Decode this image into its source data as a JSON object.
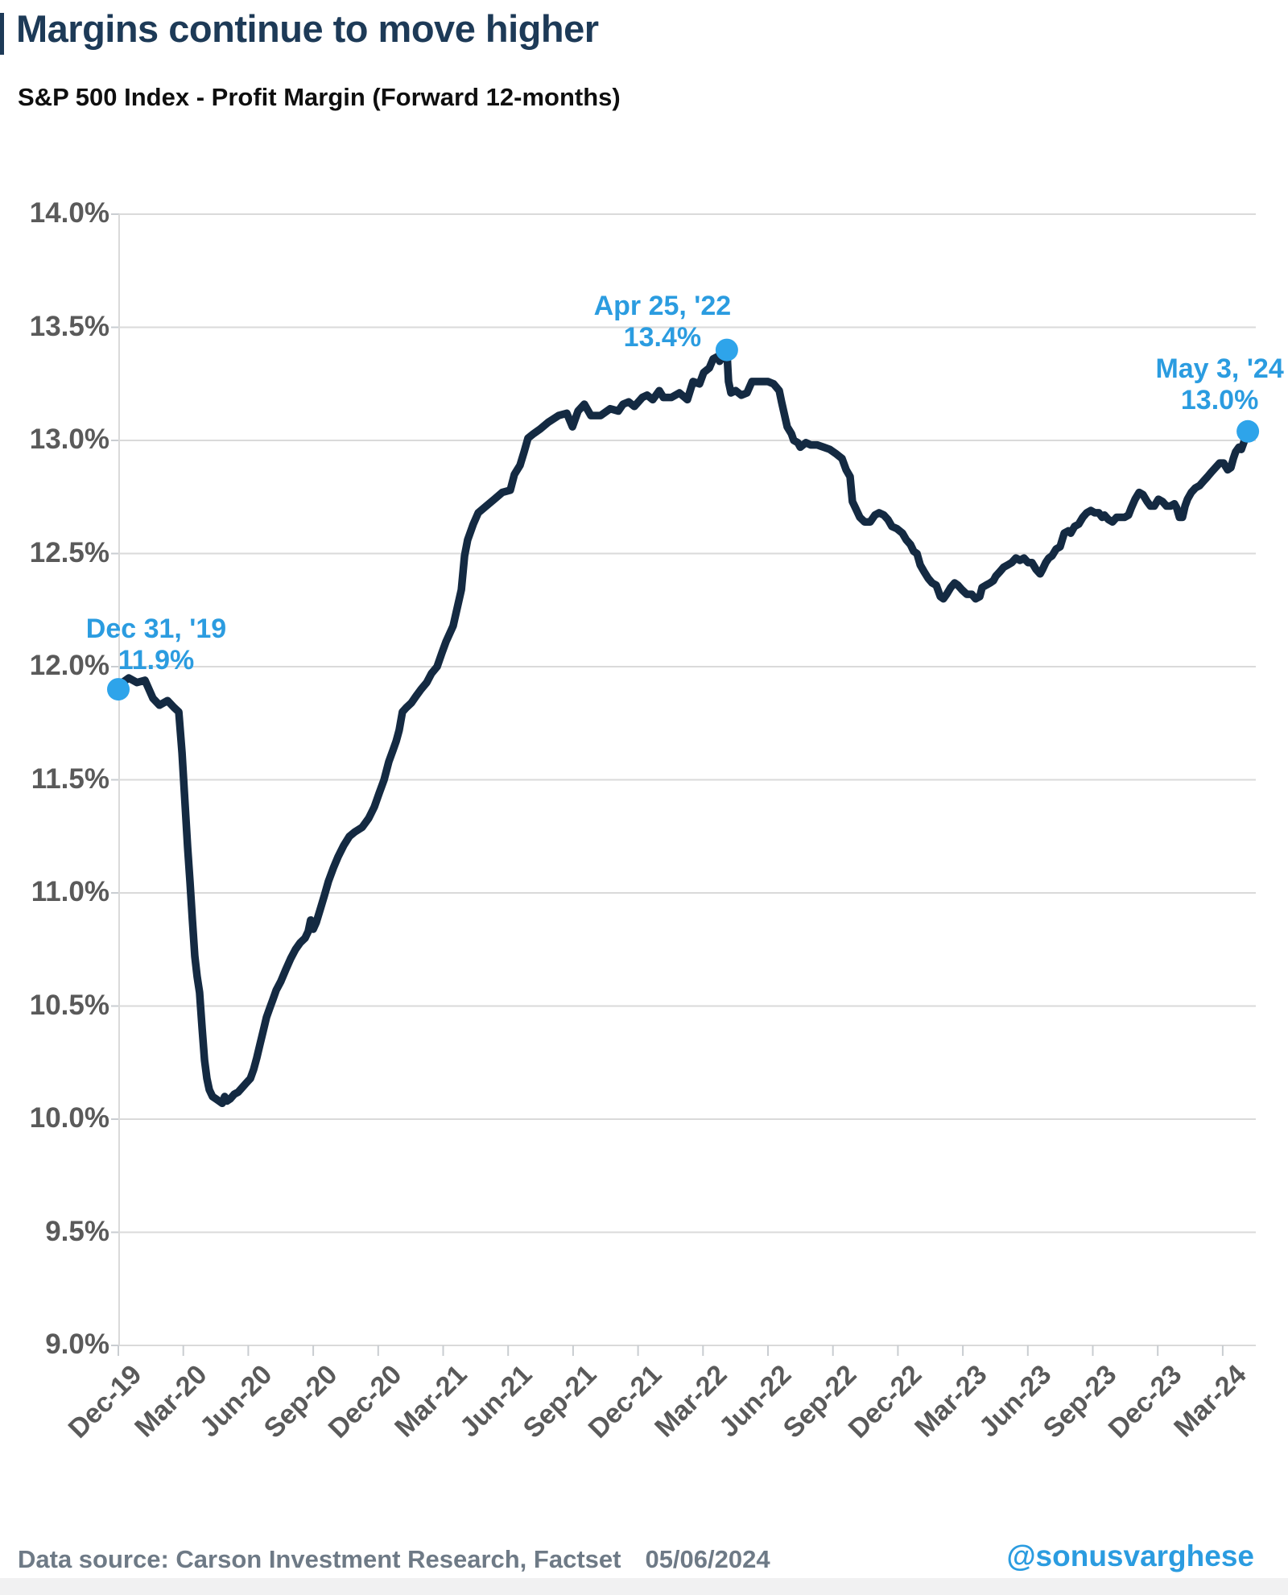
{
  "title": "Margins continue to move higher",
  "subtitle": "S&P 500 Index - Profit Margin (Forward 12-months)",
  "footer": {
    "source": "Data source: Carson Investment Research, Factset",
    "date": "05/06/2024",
    "handle": "@sonusvarghese"
  },
  "colors": {
    "title_navy": "#1d3a57",
    "line_navy": "#142a42",
    "accent_blue": "#2b9ce0",
    "dot_blue": "#2ea4ea",
    "axis_gray": "#5a5a5a",
    "grid_gray": "#dadada",
    "tick_gray": "#c9cdd1",
    "footer_gray": "#6e7a86"
  },
  "chart_data": {
    "type": "line",
    "title": "Margins continue to move higher",
    "subtitle": "S&P 500 Index - Profit Margin (Forward 12-months)",
    "xlabel": "",
    "ylabel": "",
    "x_unit": "months since Dec-2019",
    "xlim": [
      0,
      52.6
    ],
    "ylim": [
      9.0,
      14.0
    ],
    "grid": "horizontal",
    "legend": "none",
    "y_ticks": [
      {
        "v": 14.0,
        "label": "14.0%"
      },
      {
        "v": 13.5,
        "label": "13.5%"
      },
      {
        "v": 13.0,
        "label": "13.0%"
      },
      {
        "v": 12.5,
        "label": "12.5%"
      },
      {
        "v": 12.0,
        "label": "12.0%"
      },
      {
        "v": 11.5,
        "label": "11.5%"
      },
      {
        "v": 11.0,
        "label": "11.0%"
      },
      {
        "v": 10.5,
        "label": "10.5%"
      },
      {
        "v": 10.0,
        "label": "10.0%"
      },
      {
        "v": 9.5,
        "label": "9.5%"
      },
      {
        "v": 9.0,
        "label": "9.0%"
      }
    ],
    "x_ticks": [
      {
        "t": 0,
        "label": "Dec-19"
      },
      {
        "t": 3,
        "label": "Mar-20"
      },
      {
        "t": 6,
        "label": "Jun-20"
      },
      {
        "t": 9,
        "label": "Sep-20"
      },
      {
        "t": 12,
        "label": "Dec-20"
      },
      {
        "t": 15,
        "label": "Mar-21"
      },
      {
        "t": 18,
        "label": "Jun-21"
      },
      {
        "t": 21,
        "label": "Sep-21"
      },
      {
        "t": 24,
        "label": "Dec-21"
      },
      {
        "t": 27,
        "label": "Mar-22"
      },
      {
        "t": 30,
        "label": "Jun-22"
      },
      {
        "t": 33,
        "label": "Sep-22"
      },
      {
        "t": 36,
        "label": "Dec-22"
      },
      {
        "t": 39,
        "label": "Mar-23"
      },
      {
        "t": 42,
        "label": "Jun-23"
      },
      {
        "t": 45,
        "label": "Sep-23"
      },
      {
        "t": 48,
        "label": "Dec-23"
      },
      {
        "t": 51,
        "label": "Mar-24"
      }
    ],
    "annotations": [
      {
        "lines": [
          "Dec 31, '19",
          "11.9%"
        ],
        "t": 0,
        "v": 11.9
      },
      {
        "lines": [
          "Apr 25, '22",
          "13.4%"
        ],
        "t": 28.1,
        "v": 13.4
      },
      {
        "lines": [
          "May 3, '24",
          "13.0%"
        ],
        "t": 52.16,
        "v": 13.04
      }
    ],
    "series": [
      {
        "name": "S&P 500 Index - Profit Margin (Forward 12-months)",
        "points": [
          [
            0,
            11.9
          ],
          [
            0.19,
            11.93
          ],
          [
            0.48,
            11.95
          ],
          [
            0.86,
            11.93
          ],
          [
            1.23,
            11.94
          ],
          [
            1.6,
            11.86
          ],
          [
            1.9,
            11.83
          ],
          [
            2.27,
            11.85
          ],
          [
            2.57,
            11.82
          ],
          [
            2.79,
            11.8
          ],
          [
            2.94,
            11.62
          ],
          [
            3.09,
            11.38
          ],
          [
            3.2,
            11.2
          ],
          [
            3.31,
            11.05
          ],
          [
            3.42,
            10.88
          ],
          [
            3.53,
            10.72
          ],
          [
            3.64,
            10.63
          ],
          [
            3.75,
            10.56
          ],
          [
            3.87,
            10.4
          ],
          [
            3.98,
            10.26
          ],
          [
            4.09,
            10.18
          ],
          [
            4.2,
            10.13
          ],
          [
            4.35,
            10.1
          ],
          [
            4.5,
            10.09
          ],
          [
            4.65,
            10.08
          ],
          [
            4.8,
            10.07
          ],
          [
            4.91,
            10.1
          ],
          [
            5.02,
            10.08
          ],
          [
            5.17,
            10.09
          ],
          [
            5.35,
            10.11
          ],
          [
            5.54,
            10.12
          ],
          [
            5.72,
            10.14
          ],
          [
            5.91,
            10.16
          ],
          [
            6.1,
            10.18
          ],
          [
            6.25,
            10.22
          ],
          [
            6.39,
            10.27
          ],
          [
            6.54,
            10.33
          ],
          [
            6.69,
            10.39
          ],
          [
            6.84,
            10.45
          ],
          [
            6.99,
            10.49
          ],
          [
            7.14,
            10.53
          ],
          [
            7.29,
            10.57
          ],
          [
            7.51,
            10.61
          ],
          [
            7.73,
            10.66
          ],
          [
            7.96,
            10.71
          ],
          [
            8.18,
            10.75
          ],
          [
            8.4,
            10.78
          ],
          [
            8.62,
            10.8
          ],
          [
            8.77,
            10.83
          ],
          [
            8.88,
            10.88
          ],
          [
            9,
            10.84
          ],
          [
            9.14,
            10.87
          ],
          [
            9.33,
            10.93
          ],
          [
            9.52,
            10.99
          ],
          [
            9.7,
            11.05
          ],
          [
            9.93,
            11.11
          ],
          [
            10.15,
            11.16
          ],
          [
            10.41,
            11.21
          ],
          [
            10.67,
            11.25
          ],
          [
            10.93,
            11.27
          ],
          [
            11.26,
            11.29
          ],
          [
            11.56,
            11.33
          ],
          [
            11.82,
            11.38
          ],
          [
            12.04,
            11.44
          ],
          [
            12.27,
            11.5
          ],
          [
            12.49,
            11.58
          ],
          [
            12.68,
            11.63
          ],
          [
            12.83,
            11.67
          ],
          [
            12.97,
            11.72
          ],
          [
            13.12,
            11.8
          ],
          [
            13.31,
            11.82
          ],
          [
            13.53,
            11.84
          ],
          [
            13.75,
            11.87
          ],
          [
            13.98,
            11.9
          ],
          [
            14.24,
            11.93
          ],
          [
            14.46,
            11.97
          ],
          [
            14.72,
            12
          ],
          [
            14.94,
            12.06
          ],
          [
            15.13,
            12.11
          ],
          [
            15.32,
            12.15
          ],
          [
            15.46,
            12.18
          ],
          [
            15.65,
            12.26
          ],
          [
            15.84,
            12.34
          ],
          [
            15.99,
            12.49
          ],
          [
            16.13,
            12.56
          ],
          [
            16.39,
            12.63
          ],
          [
            16.62,
            12.68
          ],
          [
            16.99,
            12.71
          ],
          [
            17.36,
            12.74
          ],
          [
            17.73,
            12.77
          ],
          [
            18.1,
            12.78
          ],
          [
            18.29,
            12.85
          ],
          [
            18.55,
            12.89
          ],
          [
            18.74,
            12.95
          ],
          [
            18.92,
            13.01
          ],
          [
            19.18,
            13.03
          ],
          [
            19.48,
            13.05
          ],
          [
            19.85,
            13.08
          ],
          [
            20.33,
            13.11
          ],
          [
            20.71,
            13.12
          ],
          [
            20.97,
            13.06
          ],
          [
            21.23,
            13.13
          ],
          [
            21.52,
            13.16
          ],
          [
            21.82,
            13.11
          ],
          [
            22.27,
            13.11
          ],
          [
            22.71,
            13.14
          ],
          [
            23.09,
            13.13
          ],
          [
            23.31,
            13.16
          ],
          [
            23.57,
            13.17
          ],
          [
            23.83,
            13.15
          ],
          [
            24.2,
            13.19
          ],
          [
            24.42,
            13.2
          ],
          [
            24.68,
            13.18
          ],
          [
            24.98,
            13.22
          ],
          [
            25.17,
            13.19
          ],
          [
            25.54,
            13.19
          ],
          [
            25.91,
            13.21
          ],
          [
            26.28,
            13.18
          ],
          [
            26.54,
            13.26
          ],
          [
            26.84,
            13.25
          ],
          [
            27.03,
            13.3
          ],
          [
            27.29,
            13.32
          ],
          [
            27.47,
            13.36
          ],
          [
            27.66,
            13.37
          ],
          [
            27.77,
            13.35
          ],
          [
            27.96,
            13.38
          ],
          [
            28.1,
            13.4
          ],
          [
            28.18,
            13.26
          ],
          [
            28.29,
            13.21
          ],
          [
            28.51,
            13.22
          ],
          [
            28.77,
            13.2
          ],
          [
            29.03,
            13.21
          ],
          [
            29.26,
            13.26
          ],
          [
            29.63,
            13.26
          ],
          [
            30,
            13.26
          ],
          [
            30.26,
            13.25
          ],
          [
            30.52,
            13.22
          ],
          [
            30.63,
            13.17
          ],
          [
            30.89,
            13.06
          ],
          [
            31.08,
            13.03
          ],
          [
            31.19,
            13
          ],
          [
            31.38,
            12.99
          ],
          [
            31.49,
            12.97
          ],
          [
            31.75,
            12.99
          ],
          [
            31.97,
            12.98
          ],
          [
            32.27,
            12.98
          ],
          [
            32.57,
            12.97
          ],
          [
            32.86,
            12.96
          ],
          [
            33.16,
            12.94
          ],
          [
            33.42,
            12.92
          ],
          [
            33.61,
            12.87
          ],
          [
            33.79,
            12.84
          ],
          [
            33.9,
            12.73
          ],
          [
            34.05,
            12.7
          ],
          [
            34.24,
            12.66
          ],
          [
            34.46,
            12.64
          ],
          [
            34.72,
            12.64
          ],
          [
            34.94,
            12.67
          ],
          [
            35.13,
            12.68
          ],
          [
            35.35,
            12.67
          ],
          [
            35.54,
            12.65
          ],
          [
            35.72,
            12.62
          ],
          [
            35.95,
            12.61
          ],
          [
            36.21,
            12.59
          ],
          [
            36.39,
            12.56
          ],
          [
            36.58,
            12.54
          ],
          [
            36.73,
            12.51
          ],
          [
            36.88,
            12.5
          ],
          [
            37.03,
            12.45
          ],
          [
            37.21,
            12.42
          ],
          [
            37.4,
            12.39
          ],
          [
            37.58,
            12.37
          ],
          [
            37.77,
            12.36
          ],
          [
            37.96,
            12.31
          ],
          [
            38.1,
            12.3
          ],
          [
            38.25,
            12.32
          ],
          [
            38.44,
            12.35
          ],
          [
            38.62,
            12.37
          ],
          [
            38.77,
            12.36
          ],
          [
            38.96,
            12.34
          ],
          [
            39.18,
            12.32
          ],
          [
            39.41,
            12.32
          ],
          [
            39.59,
            12.3
          ],
          [
            39.78,
            12.31
          ],
          [
            39.89,
            12.35
          ],
          [
            40.07,
            12.36
          ],
          [
            40.26,
            12.37
          ],
          [
            40.41,
            12.38
          ],
          [
            40.52,
            12.4
          ],
          [
            40.71,
            12.42
          ],
          [
            40.89,
            12.44
          ],
          [
            41.08,
            12.45
          ],
          [
            41.26,
            12.46
          ],
          [
            41.45,
            12.48
          ],
          [
            41.64,
            12.47
          ],
          [
            41.82,
            12.48
          ],
          [
            42.01,
            12.46
          ],
          [
            42.19,
            12.46
          ],
          [
            42.38,
            12.43
          ],
          [
            42.57,
            12.41
          ],
          [
            42.68,
            12.43
          ],
          [
            42.83,
            12.46
          ],
          [
            42.97,
            12.48
          ],
          [
            43.12,
            12.49
          ],
          [
            43.31,
            12.52
          ],
          [
            43.49,
            12.53
          ],
          [
            43.68,
            12.59
          ],
          [
            43.87,
            12.6
          ],
          [
            43.98,
            12.59
          ],
          [
            44.16,
            12.62
          ],
          [
            44.35,
            12.63
          ],
          [
            44.54,
            12.66
          ],
          [
            44.72,
            12.68
          ],
          [
            44.91,
            12.69
          ],
          [
            45.09,
            12.68
          ],
          [
            45.28,
            12.68
          ],
          [
            45.43,
            12.66
          ],
          [
            45.54,
            12.67
          ],
          [
            45.72,
            12.65
          ],
          [
            45.91,
            12.64
          ],
          [
            46.1,
            12.66
          ],
          [
            46.28,
            12.66
          ],
          [
            46.47,
            12.66
          ],
          [
            46.65,
            12.67
          ],
          [
            46.77,
            12.7
          ],
          [
            46.95,
            12.74
          ],
          [
            47.14,
            12.77
          ],
          [
            47.32,
            12.76
          ],
          [
            47.51,
            12.73
          ],
          [
            47.66,
            12.71
          ],
          [
            47.84,
            12.71
          ],
          [
            48.03,
            12.74
          ],
          [
            48.22,
            12.73
          ],
          [
            48.4,
            12.71
          ],
          [
            48.59,
            12.71
          ],
          [
            48.77,
            12.72
          ],
          [
            48.88,
            12.7
          ],
          [
            49,
            12.66
          ],
          [
            49.14,
            12.66
          ],
          [
            49.26,
            12.71
          ],
          [
            49.37,
            12.74
          ],
          [
            49.55,
            12.77
          ],
          [
            49.74,
            12.79
          ],
          [
            49.93,
            12.8
          ],
          [
            50.11,
            12.82
          ],
          [
            50.3,
            12.84
          ],
          [
            50.48,
            12.86
          ],
          [
            50.67,
            12.88
          ],
          [
            50.86,
            12.9
          ],
          [
            51.04,
            12.9
          ],
          [
            51.23,
            12.87
          ],
          [
            51.38,
            12.88
          ],
          [
            51.49,
            12.92
          ],
          [
            51.6,
            12.95
          ],
          [
            51.75,
            12.97
          ],
          [
            51.86,
            12.96
          ],
          [
            51.97,
            12.99
          ],
          [
            52.08,
            13.02
          ],
          [
            52.16,
            13.04
          ]
        ]
      }
    ]
  }
}
